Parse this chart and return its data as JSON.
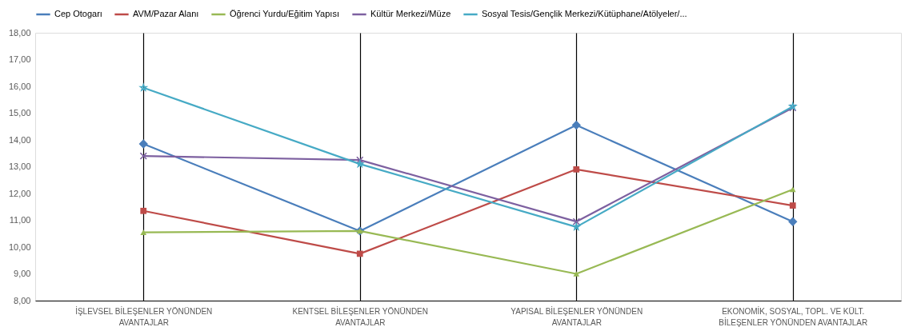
{
  "chart_data": {
    "type": "line",
    "categories": [
      "İŞLEVSEL BİLEŞENLER YÖNÜNDEN AVANTAJLAR",
      "KENTSEL BİLEŞENLER YÖNÜNDEN AVANTAJLAR",
      "YAPISAL BİLEŞENLER YÖNÜNDEN AVANTAJLAR",
      "EKONOMİK, SOSYAL, TOPL. VE KÜLT. BİLEŞENLER YÖNÜNDEN AVANTAJLAR"
    ],
    "series": [
      {
        "name": "Cep Otogarı",
        "color": "#4a7ebb",
        "marker": "diamond",
        "values": [
          13.85,
          10.6,
          14.55,
          10.95
        ]
      },
      {
        "name": "AVM/Pazar Alanı",
        "color": "#be4b48",
        "marker": "square",
        "values": [
          11.35,
          9.75,
          12.9,
          11.55
        ]
      },
      {
        "name": "Öğrenci Yurdu/Eğitim Yapısı",
        "color": "#98b954",
        "marker": "triangle",
        "values": [
          10.55,
          10.6,
          9.0,
          12.15
        ]
      },
      {
        "name": "Kültür Merkezi/Müze",
        "color": "#7d60a0",
        "marker": "cross",
        "values": [
          13.4,
          13.25,
          10.95,
          15.2
        ]
      },
      {
        "name": "Sosyal Tesis/Gençlik Merkezi/Kütüphane/Atölyeler/...",
        "color": "#46aac5",
        "marker": "star",
        "values": [
          15.95,
          13.1,
          10.75,
          15.25
        ]
      }
    ],
    "ylim": [
      8,
      18
    ],
    "yticks": [
      {
        "value": 8,
        "label": "8,00"
      },
      {
        "value": 9,
        "label": "9,00"
      },
      {
        "value": 10,
        "label": "10,00"
      },
      {
        "value": 11,
        "label": "11,00"
      },
      {
        "value": 12,
        "label": "12,00"
      },
      {
        "value": 13,
        "label": "13,00"
      },
      {
        "value": 14,
        "label": "14,00"
      },
      {
        "value": 15,
        "label": "15,00"
      },
      {
        "value": 16,
        "label": "16,00"
      },
      {
        "value": 17,
        "label": "17,00"
      },
      {
        "value": 18,
        "label": "18,00"
      }
    ],
    "grid": "x",
    "legend": "top",
    "line_style": "solid"
  }
}
